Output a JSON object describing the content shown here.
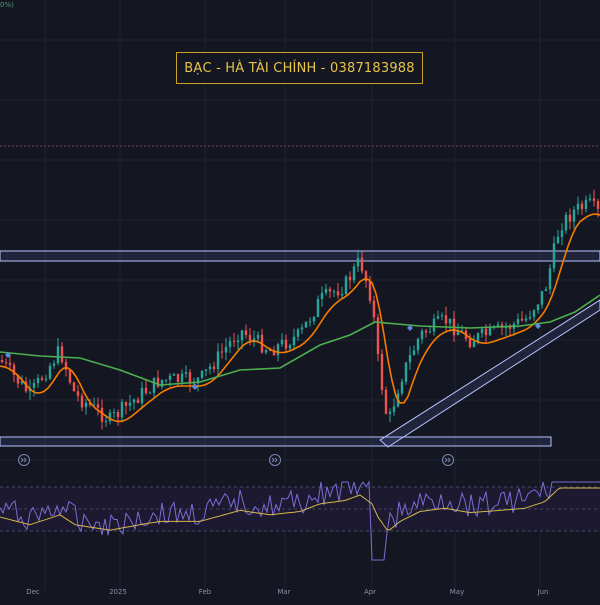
{
  "watermark": {
    "text": "BẠC - HÀ TÀI CHÍNH - 0387183988",
    "color": "#e6c34a"
  },
  "top_indicator": {
    "text": "0%)"
  },
  "colors": {
    "background": "#141722",
    "grid": "#1f2330",
    "bull": "#26a69a",
    "bear": "#ef5350",
    "ema_fast": "#f57c00",
    "ema_slow": "#4caf50",
    "zone_border": "#b8c4ff",
    "rsi_line": "#7e6bd6",
    "rsi_ma": "#d4b84a",
    "rsi_band": "#1d1a33",
    "signal_marker": "#5b8bd9",
    "resistance_dash": "#7a3a4a"
  },
  "icons": {
    "replay": "double-chevron-right-icon"
  },
  "axis": {
    "labels": [
      {
        "text": "Dec"
      },
      {
        "text": "2025"
      },
      {
        "text": "Feb"
      },
      {
        "text": "Mar"
      },
      {
        "text": "Apr"
      },
      {
        "text": "May"
      },
      {
        "text": "Jun"
      }
    ]
  }
}
